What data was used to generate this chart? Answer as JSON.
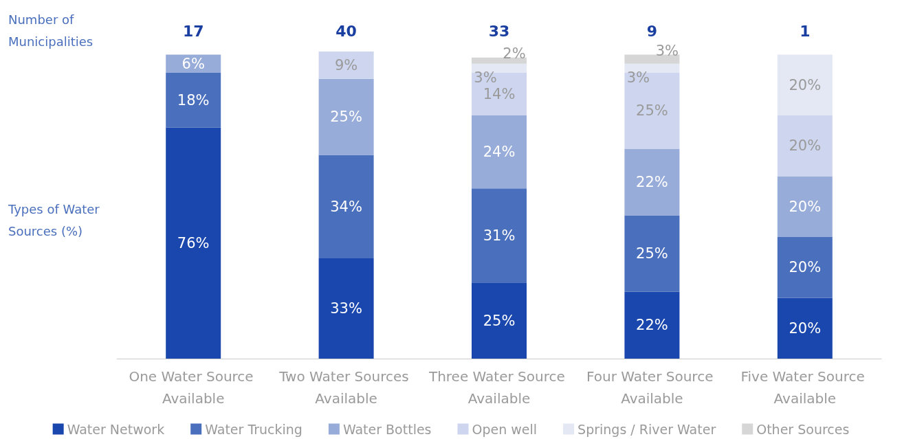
{
  "chart_data": {
    "type": "bar",
    "stacked": true,
    "legend": "bottom",
    "categories": [
      "One Water Source Available",
      "Two Water Sources Available",
      "Three Water Source Available",
      "Four Water Source Available",
      "Five Water Source Available"
    ],
    "series": [
      {
        "name": "Water Network",
        "color": "#1a47ad",
        "values": [
          76,
          33,
          25,
          22,
          20
        ],
        "value_labels": [
          "76%",
          "33%",
          "25%",
          "22%",
          "20%"
        ]
      },
      {
        "name": "Water Trucking",
        "color": "#4a6fbd",
        "values": [
          18,
          34,
          31,
          25,
          20
        ],
        "value_labels": [
          "18%",
          "34%",
          "31%",
          "25%",
          "20%"
        ]
      },
      {
        "name": "Water Bottles",
        "color": "#98acd9",
        "values": [
          6,
          25,
          24,
          22,
          20
        ],
        "value_labels": [
          "6%",
          "25%",
          "24%",
          "22%",
          "20%"
        ]
      },
      {
        "name": "Open well",
        "color": "#cdd6ee",
        "values": [
          null,
          9,
          14,
          25,
          20
        ],
        "value_labels": [
          null,
          "9%",
          "14%",
          "25%",
          "20%"
        ]
      },
      {
        "name": "Springs / River Water",
        "color": "#e4e8f5",
        "values": [
          null,
          null,
          3,
          3,
          20
        ],
        "value_labels": [
          null,
          null,
          "3%",
          "3%",
          "20%"
        ]
      },
      {
        "name": "Other Sources",
        "color": "#d6d6d6",
        "values": [
          null,
          null,
          2,
          3,
          null
        ],
        "value_labels": [
          null,
          null,
          "2%",
          "3%",
          null
        ]
      }
    ],
    "annotations": [
      "Number of Municipalities",
      "Types of Water Sources (%)",
      "17",
      "40",
      "33",
      "9",
      "1"
    ]
  }
}
